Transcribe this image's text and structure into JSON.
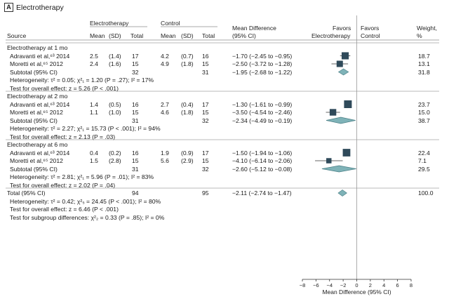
{
  "panel": {
    "letter": "A",
    "title": "Electrotherapy"
  },
  "headers": {
    "source": "Source",
    "group1": "Electrotherapy",
    "group2": "Control",
    "mean": "Mean",
    "sd": "(SD)",
    "total": "Total",
    "md_line1": "Mean Difference",
    "md_line2": "(95% CI)",
    "favors_left_1": "Favors",
    "favors_left_2": "Electrotherapy",
    "favors_right_1": "Favors",
    "favors_right_2": "Control",
    "weight_1": "Weight,",
    "weight_2": "%"
  },
  "colors": {
    "square": "#2f4a5a",
    "diamond": "#7fb3b8",
    "diamond_stroke": "#4b7f86",
    "line": "#999999",
    "text": "#1a1a1a"
  },
  "rows": [
    {
      "kind": "group",
      "label": "Electrotherapy at 1 mo"
    },
    {
      "kind": "study",
      "label": "Adravanti et al,⁶³ 2014",
      "e_mean": "2.5",
      "e_sd": "(1.4)",
      "e_total": "17",
      "c_mean": "4.2",
      "c_sd": "(0.7)",
      "c_total": "16",
      "md": "−1.70 (−2.45 to −0.95)",
      "weight": "18.7"
    },
    {
      "kind": "study",
      "label": "Moretti et al,⁶⁵ 2012",
      "e_mean": "2.4",
      "e_sd": "(1.6)",
      "e_total": "15",
      "c_mean": "4.9",
      "c_sd": "(1.8)",
      "c_total": "15",
      "md": "−2.50 (−3.72 to −1.28)",
      "weight": "13.1"
    },
    {
      "kind": "subtotal",
      "label": "Subtotal (95% CI)",
      "e_total": "32",
      "c_total": "31",
      "md": "−1.95 (−2.68 to −1.22)",
      "weight": "31.8"
    },
    {
      "kind": "note",
      "label": "Heterogeneity: τ² = 0.05; χ²₁ = 1.20 (P = .27); I² = 17%"
    },
    {
      "kind": "note",
      "label": "Test for overall effect: z = 5.26 (P < .001)"
    },
    {
      "kind": "group",
      "label": "Electrotherapy at 2 mo"
    },
    {
      "kind": "study",
      "label": "Adravanti et al,⁶³ 2014",
      "e_mean": "1.4",
      "e_sd": "(0.5)",
      "e_total": "16",
      "c_mean": "2.7",
      "c_sd": "(0.4)",
      "c_total": "17",
      "md": "−1.30 (−1.61 to −0.99)",
      "weight": "23.7"
    },
    {
      "kind": "study",
      "label": "Moretti et al,⁶⁵ 2012",
      "e_mean": "1.1",
      "e_sd": "(1.0)",
      "e_total": "15",
      "c_mean": "4.6",
      "c_sd": "(1.8)",
      "c_total": "15",
      "md": "−3.50 (−4.54 to −2.46)",
      "weight": "15.0"
    },
    {
      "kind": "subtotal",
      "label": "Subtotal (95% CI)",
      "e_total": "31",
      "c_total": "32",
      "md": "−2.34 (−4.49 to −0.19)",
      "weight": "38.7"
    },
    {
      "kind": "note",
      "label": "Heterogeneity: τ² = 2.27; χ²₁ = 15.73 (P < .001); I² = 94%"
    },
    {
      "kind": "note",
      "label": "Test for overall effect: z = 2.13 (P = .03)"
    },
    {
      "kind": "group",
      "label": "Electrotherapy at 6 mo"
    },
    {
      "kind": "study",
      "label": "Adravanti et al,⁶³ 2014",
      "e_mean": "0.4",
      "e_sd": "(0.2)",
      "e_total": "16",
      "c_mean": "1.9",
      "c_sd": "(0.9)",
      "c_total": "17",
      "md": "−1.50 (−1.94 to −1.06)",
      "weight": "22.4"
    },
    {
      "kind": "study",
      "label": "Moretti et al,⁶⁵ 2012",
      "e_mean": "1.5",
      "e_sd": "(2.8)",
      "e_total": "15",
      "c_mean": "5.6",
      "c_sd": "(2.9)",
      "c_total": "15",
      "md": "−4.10 (−6.14 to −2.06)",
      "weight": "7.1"
    },
    {
      "kind": "subtotal",
      "label": "Subtotal (95% CI)",
      "e_total": "31",
      "c_total": "32",
      "md": "−2.60 (−5.12 to −0.08)",
      "weight": "29.5"
    },
    {
      "kind": "note",
      "label": "Heterogeneity: τ² = 2.81; χ²₁ = 5.96 (P = .01); I² = 83%"
    },
    {
      "kind": "note",
      "label": "Test for overall effect: z = 2.02 (P = .04)"
    },
    {
      "kind": "total",
      "label": "Total (95% CI)",
      "e_total": "94",
      "c_total": "95",
      "md": "−2.11 (−2.74 to −1.47)",
      "weight": "100.0"
    },
    {
      "kind": "note",
      "label": "Heterogeneity: τ² = 0.42; χ²₅ = 24.45 (P < .001); I² = 80%"
    },
    {
      "kind": "note",
      "label": "Test for overall effect: z = 6.46 (P < .001)"
    },
    {
      "kind": "note",
      "label": "Test for subgroup differences: χ²₂ = 0.33 (P = .85); I² = 0%"
    }
  ],
  "chart_data": {
    "type": "forest",
    "xlabel": "Mean Difference (95% CI)",
    "xlim": [
      -8,
      8
    ],
    "xticks": [
      -8,
      -6,
      -4,
      -2,
      0,
      2,
      4,
      6,
      8
    ],
    "xtick_labels": [
      "−8",
      "−6",
      "−4",
      "−2",
      "0",
      "2",
      "4",
      "6",
      "8"
    ],
    "reference_line": 0,
    "studies": [
      {
        "group": "1 mo",
        "name": "Adravanti et al, 2014",
        "md": -1.7,
        "lo": -2.45,
        "hi": -0.95,
        "weight": 18.7
      },
      {
        "group": "1 mo",
        "name": "Moretti et al, 2012",
        "md": -2.5,
        "lo": -3.72,
        "hi": -1.28,
        "weight": 13.1
      },
      {
        "group": "2 mo",
        "name": "Adravanti et al, 2014",
        "md": -1.3,
        "lo": -1.61,
        "hi": -0.99,
        "weight": 23.7
      },
      {
        "group": "2 mo",
        "name": "Moretti et al, 2012",
        "md": -3.5,
        "lo": -4.54,
        "hi": -2.46,
        "weight": 15.0
      },
      {
        "group": "6 mo",
        "name": "Adravanti et al, 2014",
        "md": -1.5,
        "lo": -1.94,
        "hi": -1.06,
        "weight": 22.4
      },
      {
        "group": "6 mo",
        "name": "Moretti et al, 2012",
        "md": -4.1,
        "lo": -6.14,
        "hi": -2.06,
        "weight": 7.1
      }
    ],
    "pooled": [
      {
        "group": "1 mo",
        "md": -1.95,
        "lo": -2.68,
        "hi": -1.22,
        "weight": 31.8
      },
      {
        "group": "2 mo",
        "md": -2.34,
        "lo": -4.49,
        "hi": -0.19,
        "weight": 38.7
      },
      {
        "group": "6 mo",
        "md": -2.6,
        "lo": -5.12,
        "hi": -0.08,
        "weight": 29.5
      },
      {
        "group": "Total",
        "md": -2.11,
        "lo": -2.74,
        "hi": -1.47,
        "weight": 100.0
      }
    ]
  }
}
